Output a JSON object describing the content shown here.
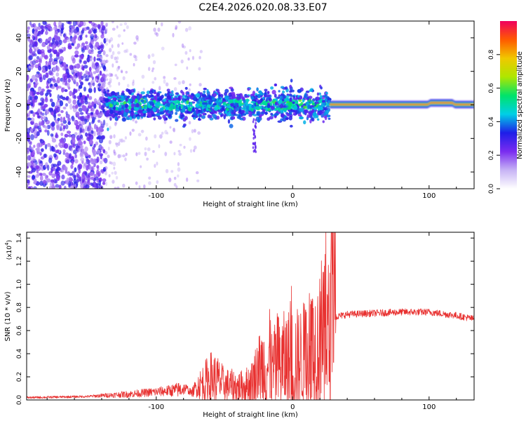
{
  "title": "C2E4.2026.020.08.33.E07",
  "colors": {
    "background": "#ffffff",
    "snr_line": "#e8302f",
    "axis": "#000000",
    "colormap": [
      "#ffffff",
      "#c7b3f5",
      "#7a2cf0",
      "#1e1ee8",
      "#00cfe6",
      "#00e36a",
      "#aee600",
      "#f0c800",
      "#ff5a00",
      "#f0005e"
    ]
  },
  "chart_data": [
    {
      "type": "heatmap",
      "name": "spectrogram",
      "xlabel": "Height of straight line (km)",
      "ylabel": "Frequency (Hz)",
      "xlim": [
        -195,
        133
      ],
      "ylim": [
        -50,
        50
      ],
      "xticks": [
        -100,
        0,
        100
      ],
      "xtick_labels": [
        "-100",
        "0",
        "100"
      ],
      "yticks": [
        -40,
        -20,
        0,
        20,
        40
      ],
      "ytick_labels": [
        "-40",
        "-20",
        "0",
        "20",
        "40"
      ],
      "regions": [
        {
          "x_range": [
            -195,
            -137
          ],
          "description": "broadband noise",
          "freq_range": [
            -50,
            50
          ]
        },
        {
          "x_range": [
            -137,
            27
          ],
          "description": "scattered signal",
          "freq_range": [
            -10,
            10
          ]
        },
        {
          "x_range": [
            27,
            133
          ],
          "description": "narrow carrier line",
          "freq_range": [
            -1,
            2
          ]
        }
      ],
      "colorbar": {
        "label": "Normalized spectral amplitude",
        "range": [
          0.0,
          1.0
        ],
        "ticks": [
          0.0,
          0.2,
          0.4,
          0.6,
          0.8
        ],
        "tick_labels": [
          "0.0",
          "0.2",
          "0.4",
          "0.6",
          "0.8"
        ]
      }
    },
    {
      "type": "line",
      "name": "snr",
      "xlabel": "Height of straight line (km)",
      "ylabel": "SNR (10 * v/v)",
      "scale_label_base": "(x10",
      "scale_label_exp": "4",
      "scale_label_close": ")",
      "xlim": [
        -195,
        133
      ],
      "ylim": [
        0,
        1.45
      ],
      "xticks": [
        -100,
        0,
        100
      ],
      "xtick_labels": [
        "-100",
        "0",
        "100"
      ],
      "yticks": [
        0.0,
        0.2,
        0.4,
        0.6,
        0.8,
        1.0,
        1.2,
        1.4
      ],
      "ytick_labels": [
        "0.0",
        "0.2",
        "0.4",
        "0.6",
        "0.8",
        "1.0",
        "1.2",
        "1.4"
      ],
      "series": [
        {
          "name": "SNR",
          "x": [
            -195,
            -150,
            -137,
            -120,
            -100,
            -90,
            -82,
            -78,
            -74,
            -70,
            -65,
            -60,
            -55,
            -50,
            -45,
            -40,
            -35,
            -30,
            -25,
            -20,
            -15,
            -10,
            -5,
            0,
            5,
            10,
            15,
            20,
            25,
            28,
            32,
            40,
            60,
            80,
            100,
            120,
            133
          ],
          "y_base": [
            0.02,
            0.03,
            0.04,
            0.05,
            0.07,
            0.08,
            0.09,
            0.1,
            0.06,
            0.12,
            0.15,
            0.18,
            0.17,
            0.13,
            0.12,
            0.11,
            0.12,
            0.15,
            0.28,
            0.3,
            0.25,
            0.3,
            0.33,
            0.32,
            0.35,
            0.4,
            0.45,
            0.5,
            0.5,
            0.5,
            0.72,
            0.74,
            0.75,
            0.76,
            0.76,
            0.73,
            0.7
          ],
          "y_amp": [
            0.01,
            0.01,
            0.02,
            0.03,
            0.04,
            0.05,
            0.07,
            0.04,
            0.03,
            0.1,
            0.18,
            0.25,
            0.22,
            0.15,
            0.15,
            0.14,
            0.15,
            0.2,
            0.3,
            0.4,
            0.35,
            0.45,
            0.45,
            0.5,
            0.45,
            0.5,
            0.55,
            0.6,
            0.7,
            0.8,
            0.03,
            0.03,
            0.03,
            0.03,
            0.03,
            0.03,
            0.03
          ]
        }
      ]
    }
  ]
}
